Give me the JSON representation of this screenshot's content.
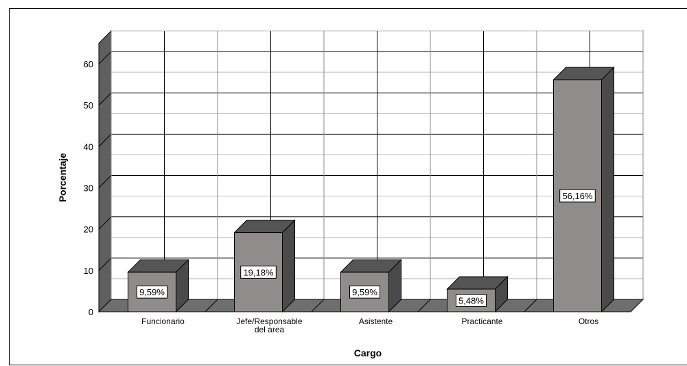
{
  "chart_data": {
    "type": "bar",
    "title": "",
    "xlabel": "Cargo",
    "ylabel": "Porcentaje",
    "ylim": [
      0,
      65
    ],
    "yticks": [
      0,
      10,
      20,
      30,
      40,
      50,
      60
    ],
    "categories": [
      "Funcionario",
      "Jefe/Responsable\ndel area",
      "Asistente",
      "Practicante",
      "Otros"
    ],
    "values": [
      9.59,
      19.18,
      9.59,
      5.48,
      56.16
    ],
    "data_labels": [
      "9,59%",
      "19,18%",
      "9,59%",
      "5,48%",
      "56,16%"
    ],
    "grid": true,
    "style": "3d",
    "colors": {
      "bar_front": "#918c8c",
      "bar_top": "#555555",
      "bar_side": "#4a4a4a",
      "wall": "#ffffff",
      "floor": "#6e6e6e"
    }
  }
}
